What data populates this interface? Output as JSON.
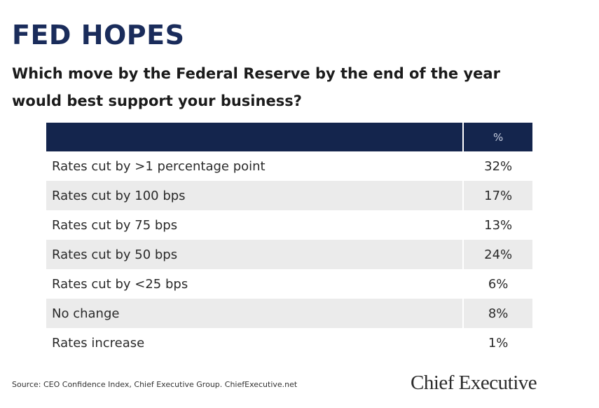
{
  "header": {
    "title": "FED HOPES",
    "subtitle_lines": [
      "Which move by the Federal Reserve by the end of the year",
      "would best support your business?"
    ]
  },
  "table": {
    "columns": [
      "",
      "%"
    ],
    "rows": [
      [
        "Rates cut by >1 percentage point",
        "32%"
      ],
      [
        "Rates cut by 100 bps",
        "17%"
      ],
      [
        "Rates cut by 75 bps",
        "13%"
      ],
      [
        "Rates cut by 50 bps",
        "24%"
      ],
      [
        "Rates cut by <25 bps",
        "6%"
      ],
      [
        "No change",
        "8%"
      ],
      [
        "Rates increase",
        "1%"
      ]
    ]
  },
  "footer": {
    "source": "Source: CEO Confidence Index, Chief Executive Group. ChiefExecutive.net",
    "logo": "Chief Executive"
  }
}
